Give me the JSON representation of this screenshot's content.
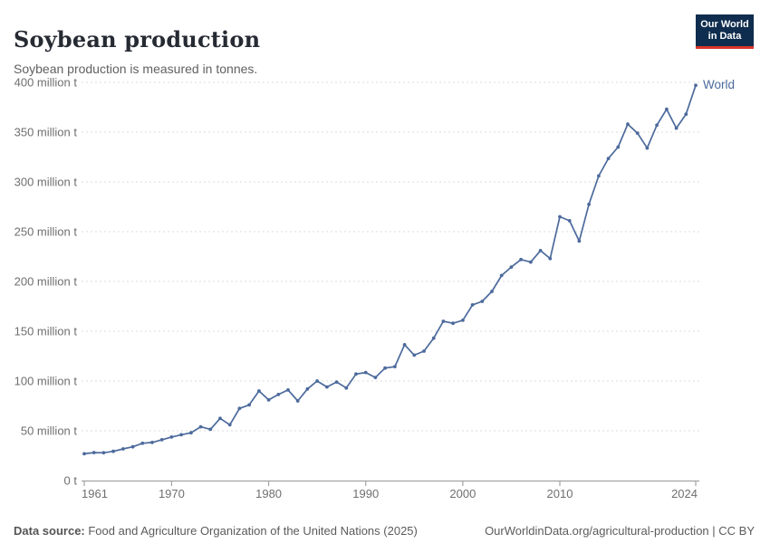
{
  "header": {
    "title": "Soybean production",
    "subtitle": "Soybean production is measured in tonnes.",
    "logo": {
      "line1": "Our World",
      "line2": "in Data",
      "bg_color": "#0f2d4e",
      "stripe_color": "#d8352a"
    }
  },
  "chart_data": {
    "type": "line",
    "title": "Soybean production",
    "unit": "tonnes",
    "xlim": [
      1961,
      2024
    ],
    "ylim": [
      0,
      400
    ],
    "grid": "horizontal-dashed",
    "legend_position": "end-of-line",
    "x_ticks": [
      1961,
      1970,
      1980,
      1990,
      2000,
      2010,
      2024
    ],
    "y_ticks": [
      {
        "value": 0,
        "label": "0 t"
      },
      {
        "value": 50,
        "label": "50 million t"
      },
      {
        "value": 100,
        "label": "100 million t"
      },
      {
        "value": 150,
        "label": "150 million t"
      },
      {
        "value": 200,
        "label": "200 million t"
      },
      {
        "value": 250,
        "label": "250 million t"
      },
      {
        "value": 300,
        "label": "300 million t"
      },
      {
        "value": 350,
        "label": "350 million t"
      },
      {
        "value": 400,
        "label": "400 million t"
      }
    ],
    "series": [
      {
        "name": "World",
        "color": "#4C6A9C",
        "x": [
          1961,
          1962,
          1963,
          1964,
          1965,
          1966,
          1967,
          1968,
          1969,
          1970,
          1971,
          1972,
          1973,
          1974,
          1975,
          1976,
          1977,
          1978,
          1979,
          1980,
          1981,
          1982,
          1983,
          1984,
          1985,
          1986,
          1987,
          1988,
          1989,
          1990,
          1991,
          1992,
          1993,
          1994,
          1995,
          1996,
          1997,
          1998,
          1999,
          2000,
          2001,
          2002,
          2003,
          2004,
          2005,
          2006,
          2007,
          2008,
          2009,
          2010,
          2011,
          2012,
          2013,
          2014,
          2015,
          2016,
          2017,
          2018,
          2019,
          2020,
          2021,
          2022,
          2023,
          2024
        ],
        "values": [
          26.9,
          28.1,
          27.9,
          29.4,
          31.8,
          33.9,
          37.5,
          38.3,
          41.0,
          43.7,
          46.0,
          48.0,
          54.0,
          51.5,
          62.5,
          56.0,
          72.5,
          76.0,
          90.0,
          81.0,
          86.5,
          91.0,
          80.0,
          92.0,
          100.0,
          94.0,
          99.0,
          93.0,
          107.0,
          108.5,
          103.5,
          113.0,
          114.5,
          136.5,
          126.0,
          130.0,
          143.0,
          160.0,
          158.0,
          161.0,
          176.5,
          180.0,
          190.0,
          206.0,
          214.5,
          222.0,
          219.5,
          231.0,
          223.0,
          265.0,
          261.0,
          240.5,
          277.5,
          306.0,
          323.5,
          335.0,
          358.0,
          349.0,
          334.0,
          357.0,
          373.0,
          354.0,
          368.0,
          397.0
        ]
      }
    ]
  },
  "colors": {
    "gridline": "#dbdbdb",
    "axis": "#a3a3a3",
    "tick_text": "#6f6f6f"
  },
  "footer": {
    "source_label": "Data source:",
    "source_text": " Food and Agriculture Organization of the United Nations (2025)",
    "link_text": "OurWorldinData.org/agricultural-production | CC BY"
  }
}
